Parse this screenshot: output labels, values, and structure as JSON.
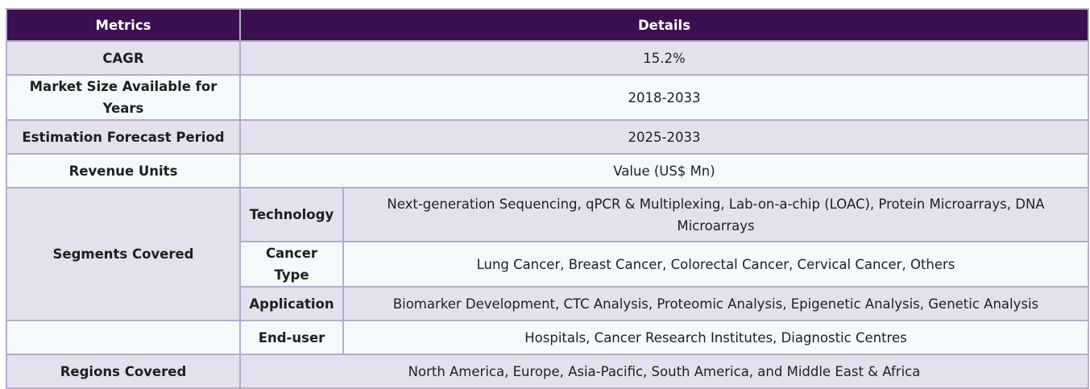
{
  "header": {
    "col1": "Metrics",
    "col2": "Details"
  },
  "rows": {
    "cagr": {
      "label": "CAGR",
      "value": "15.2%"
    },
    "market_size": {
      "label": "Market Size Available for Years",
      "value": "2018-2033"
    },
    "forecast": {
      "label": "Estimation Forecast Period",
      "value": "2025-2033"
    },
    "revenue": {
      "label": "Revenue Units",
      "value": "Value (US$ Mn)"
    },
    "segments": {
      "label": "Segments Covered",
      "items": [
        {
          "label": "Technology",
          "value": "Next-generation Sequencing, qPCR & Multiplexing, Lab-on-a-chip (LOAC), Protein Microarrays, DNA Microarrays"
        },
        {
          "label": "Cancer Type",
          "value": "Lung Cancer, Breast Cancer, Colorectal Cancer, Cervical Cancer, Others"
        },
        {
          "label": "Application",
          "value": "Biomarker Development, CTC Analysis, Proteomic Analysis, Epigenetic Analysis, Genetic Analysis"
        },
        {
          "label": "End-user",
          "value": "Hospitals, Cancer Research Institutes, Diagnostic Centres"
        }
      ]
    },
    "regions": {
      "label": "Regions Covered",
      "value": "North America, Europe, Asia-Pacific, South America, and Middle East & Africa"
    }
  }
}
